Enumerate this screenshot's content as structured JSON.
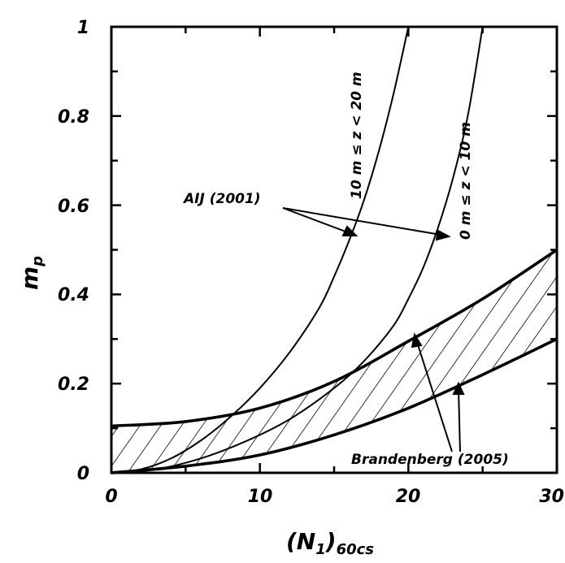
{
  "chart_data": {
    "type": "line",
    "title": "",
    "xlabel": "(N1)60cs",
    "xlabel_main": "(N",
    "xlabel_sub1": "1",
    "xlabel_close": ")",
    "xlabel_sub2": "60cs",
    "ylabel": "mp",
    "ylabel_main": "m",
    "ylabel_sub": "p",
    "xlim": [
      0,
      30
    ],
    "ylim": [
      0,
      1
    ],
    "x_ticks": [
      0,
      10,
      20,
      30
    ],
    "x_tick_labels": [
      "0",
      "10",
      "20",
      "30"
    ],
    "y_ticks": [
      0,
      0.2,
      0.4,
      0.6,
      0.8,
      1
    ],
    "y_tick_labels": [
      "0",
      "0.2",
      "0.4",
      "0.6",
      "0.8",
      "1"
    ],
    "grid": false,
    "series": [
      {
        "name": "10 m ≤ z < 20 m",
        "x": [
          0,
          2,
          4,
          6,
          8,
          10,
          12,
          14,
          15,
          16,
          17,
          18,
          19,
          20
        ],
        "y": [
          0,
          0.008,
          0.032,
          0.072,
          0.125,
          0.19,
          0.27,
          0.37,
          0.44,
          0.52,
          0.61,
          0.72,
          0.85,
          1.0
        ]
      },
      {
        "name": "0 m ≤ z < 10 m",
        "x": [
          0,
          3,
          6,
          9,
          12,
          15,
          17,
          19,
          20,
          21,
          22,
          23,
          24,
          25
        ],
        "y": [
          0,
          0.008,
          0.032,
          0.07,
          0.12,
          0.19,
          0.25,
          0.33,
          0.39,
          0.46,
          0.55,
          0.66,
          0.8,
          1.0
        ]
      }
    ],
    "band": {
      "name": "Brandenberg (2005)",
      "x": [
        0,
        5,
        10,
        15,
        20,
        25,
        30
      ],
      "upper": [
        0.105,
        0.115,
        0.145,
        0.205,
        0.295,
        0.39,
        0.5
      ],
      "lower": [
        0,
        0.015,
        0.04,
        0.085,
        0.145,
        0.22,
        0.3
      ]
    },
    "annotations": [
      {
        "text": "AIJ (2001)",
        "x": 11.5,
        "y": 0.585
      },
      {
        "text": "Brandenberg (2005)",
        "x": 16.2,
        "y": 0.03
      }
    ]
  }
}
